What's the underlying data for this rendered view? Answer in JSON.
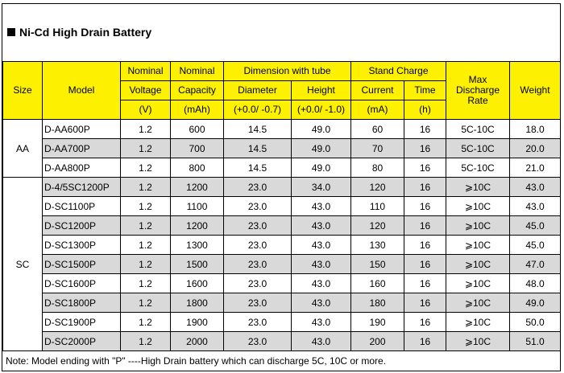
{
  "title": "Ni-Cd High Drain Battery",
  "headers": {
    "size": "Size",
    "model": "Model",
    "voltage": [
      "Nominal",
      "Voltage",
      "(V)"
    ],
    "capacity": [
      "Nominal",
      "Capacity",
      "(mAh)"
    ],
    "dimension_group": "Dimension with tube",
    "diameter": [
      "Diameter",
      "(+0.0/ -0.7)"
    ],
    "height": [
      "Height",
      "(+0.0/ -1.0)"
    ],
    "charge_group": "Stand Charge",
    "current": [
      "Current",
      "(mA)"
    ],
    "time": [
      "Time",
      "(h)"
    ],
    "discharge": [
      "Max",
      "Discharge",
      "Rate"
    ],
    "weight": "Weight"
  },
  "groups": [
    {
      "size": "AA",
      "rows": [
        {
          "model": "D-AA600P",
          "voltage": "1.2",
          "capacity": "600",
          "diameter": "14.5",
          "height": "49.0",
          "current": "60",
          "time": "16",
          "discharge": "5C-10C",
          "weight": "18.0"
        },
        {
          "model": "D-AA700P",
          "voltage": "1.2",
          "capacity": "700",
          "diameter": "14.5",
          "height": "49.0",
          "current": "70",
          "time": "16",
          "discharge": "5C-10C",
          "weight": "20.0"
        },
        {
          "model": "D-AA800P",
          "voltage": "1.2",
          "capacity": "800",
          "diameter": "14.5",
          "height": "49.0",
          "current": "80",
          "time": "16",
          "discharge": "5C-10C",
          "weight": "21.0"
        }
      ]
    },
    {
      "size": "SC",
      "rows": [
        {
          "model": "D-4/5SC1200P",
          "voltage": "1.2",
          "capacity": "1200",
          "diameter": "23.0",
          "height": "34.0",
          "current": "120",
          "time": "16",
          "discharge": "⩾10C",
          "weight": "43.0"
        },
        {
          "model": "D-SC1100P",
          "voltage": "1.2",
          "capacity": "1100",
          "diameter": "23.0",
          "height": "43.0",
          "current": "110",
          "time": "16",
          "discharge": "⩾10C",
          "weight": "43.0"
        },
        {
          "model": "D-SC1200P",
          "voltage": "1.2",
          "capacity": "1200",
          "diameter": "23.0",
          "height": "43.0",
          "current": "120",
          "time": "16",
          "discharge": "⩾10C",
          "weight": "45.0"
        },
        {
          "model": "D-SC1300P",
          "voltage": "1.2",
          "capacity": "1300",
          "diameter": "23.0",
          "height": "43.0",
          "current": "130",
          "time": "16",
          "discharge": "⩾10C",
          "weight": "45.0"
        },
        {
          "model": "D-SC1500P",
          "voltage": "1.2",
          "capacity": "1500",
          "diameter": "23.0",
          "height": "43.0",
          "current": "150",
          "time": "16",
          "discharge": "⩾10C",
          "weight": "47.0"
        },
        {
          "model": "D-SC1600P",
          "voltage": "1.2",
          "capacity": "1600",
          "diameter": "23.0",
          "height": "43.0",
          "current": "160",
          "time": "16",
          "discharge": "⩾10C",
          "weight": "48.0"
        },
        {
          "model": "D-SC1800P",
          "voltage": "1.2",
          "capacity": "1800",
          "diameter": "23.0",
          "height": "43.0",
          "current": "180",
          "time": "16",
          "discharge": "⩾10C",
          "weight": "49.0"
        },
        {
          "model": "D-SC1900P",
          "voltage": "1.2",
          "capacity": "1900",
          "diameter": "23.0",
          "height": "43.0",
          "current": "190",
          "time": "16",
          "discharge": "⩾10C",
          "weight": "50.0"
        },
        {
          "model": "D-SC2000P",
          "voltage": "1.2",
          "capacity": "2000",
          "diameter": "23.0",
          "height": "43.0",
          "current": "200",
          "time": "16",
          "discharge": "⩾10C",
          "weight": "51.0"
        }
      ]
    }
  ],
  "note": "Note: Model ending with \"P\" ----High Drain battery which can discharge 5C, 10C or more.",
  "colors": {
    "header_bg": "#fdf000",
    "shade_bg": "#d9d9d9"
  }
}
